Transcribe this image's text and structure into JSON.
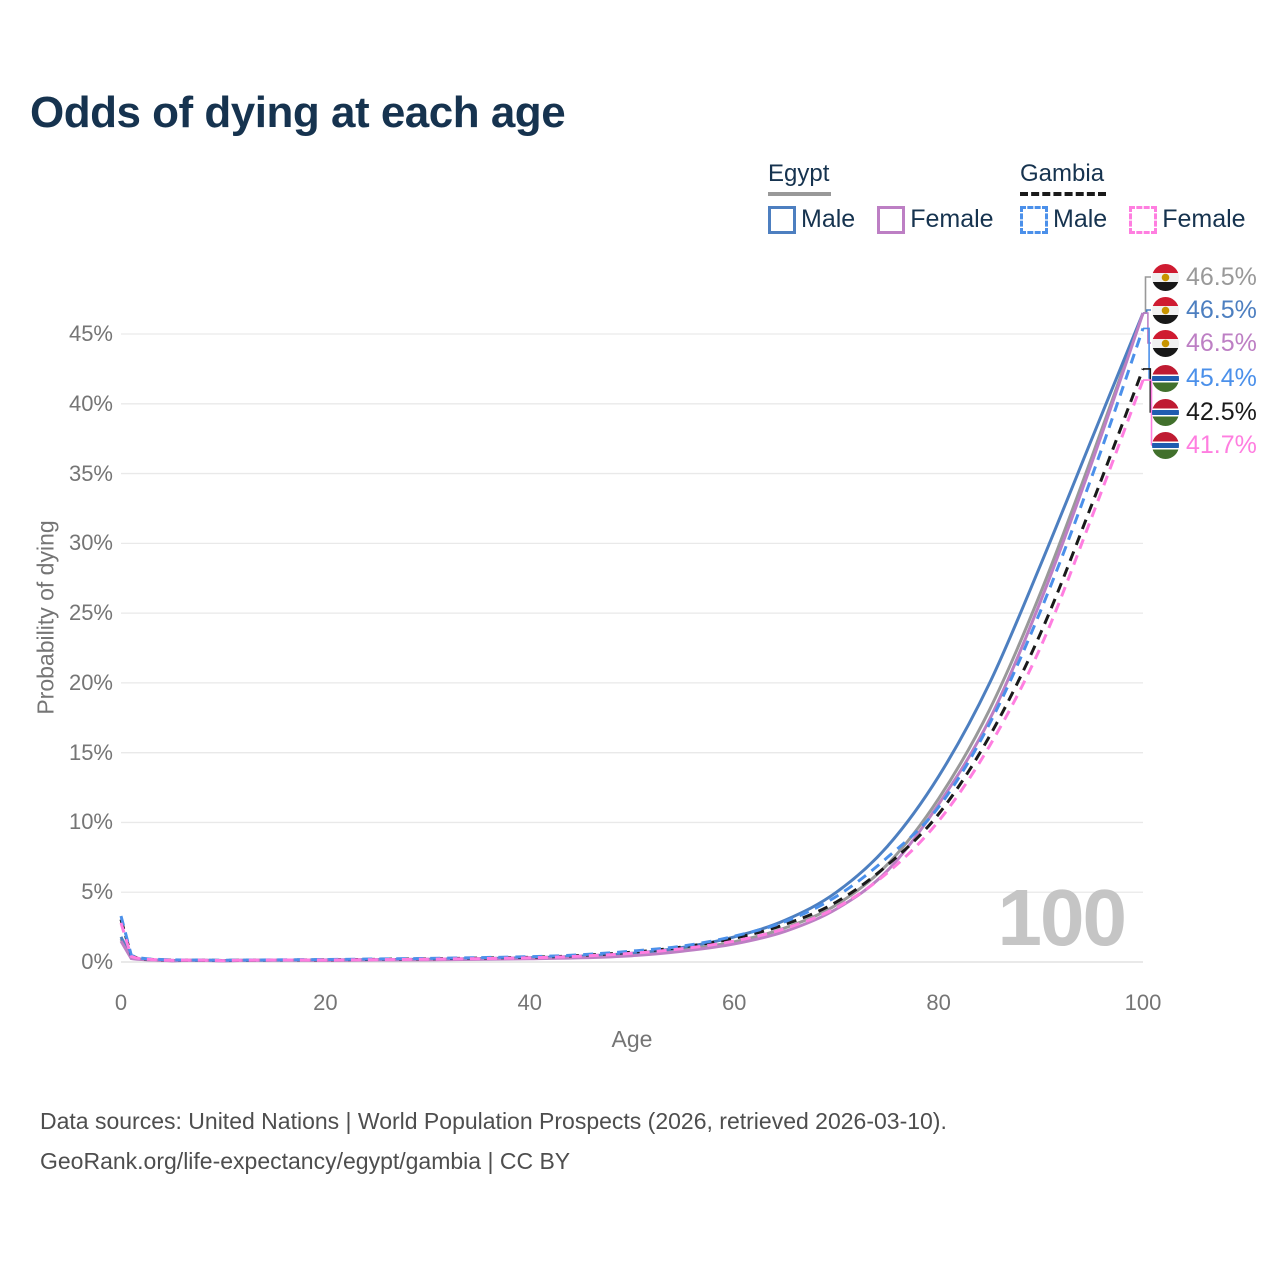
{
  "title": "Odds of dying at each age",
  "legend": {
    "groups": [
      {
        "name": "Egypt",
        "line_style": "solid",
        "underline_color": "#999999",
        "items": [
          {
            "label": "Male",
            "color": "#4d7fc0",
            "dashed": false
          },
          {
            "label": "Female",
            "color": "#bd7fc4",
            "dashed": false
          }
        ]
      },
      {
        "name": "Gambia",
        "line_style": "dashed",
        "underline_color": "#1a1a1a",
        "items": [
          {
            "label": "Male",
            "color": "#4b90ea",
            "dashed": true
          },
          {
            "label": "Female",
            "color": "#ff7ee0",
            "dashed": true
          }
        ]
      }
    ]
  },
  "watermark": "100",
  "footer": {
    "line1": "Data sources: United Nations | World Population Prospects (2026, retrieved 2026-03-10).",
    "line2": "GeoRank.org/life-expectancy/egypt/gambia | CC BY"
  },
  "chart_data": {
    "type": "line",
    "title": "Odds of dying at each age",
    "xlabel": "Age",
    "ylabel": "Probability of dying",
    "xlim": [
      0,
      100
    ],
    "ylim_percent": [
      0,
      47
    ],
    "grid": "horizontal",
    "x_ticks": [
      0,
      20,
      40,
      60,
      80,
      100
    ],
    "y_tick_percents": [
      0,
      5,
      10,
      15,
      20,
      25,
      30,
      35,
      40,
      45
    ],
    "ages": [
      0,
      1,
      5,
      10,
      20,
      30,
      40,
      45,
      50,
      55,
      60,
      65,
      70,
      75,
      80,
      85,
      90,
      95,
      100
    ],
    "unit": "percent probability of dying at each age",
    "series": [
      {
        "name": "Egypt",
        "country": "Egypt",
        "sex": "Both",
        "color": "#999999",
        "dashed": false,
        "values": [
          1.65,
          0.28,
          0.09,
          0.09,
          0.13,
          0.17,
          0.26,
          0.35,
          0.52,
          0.9,
          1.45,
          2.45,
          4.1,
          7.0,
          11.7,
          18.1,
          26.5,
          36.2,
          46.5
        ]
      },
      {
        "name": "Egypt Male",
        "country": "Egypt",
        "sex": "Male",
        "color": "#4d7fc0",
        "dashed": false,
        "values": [
          1.8,
          0.3,
          0.1,
          0.1,
          0.15,
          0.2,
          0.3,
          0.42,
          0.62,
          1.05,
          1.8,
          3.0,
          5.0,
          8.3,
          13.3,
          20.0,
          28.5,
          37.5,
          46.5
        ]
      },
      {
        "name": "Egypt Female",
        "country": "Egypt",
        "sex": "Female",
        "color": "#bd7fc4",
        "dashed": false,
        "values": [
          1.5,
          0.25,
          0.08,
          0.08,
          0.11,
          0.15,
          0.23,
          0.3,
          0.45,
          0.78,
          1.3,
          2.2,
          3.8,
          6.55,
          11.3,
          17.4,
          25.9,
          35.8,
          46.5
        ]
      },
      {
        "name": "Gambia",
        "country": "Gambia",
        "sex": "Both",
        "color": "#1a1a1a",
        "dashed": true,
        "values": [
          3.05,
          0.45,
          0.13,
          0.11,
          0.16,
          0.23,
          0.34,
          0.47,
          0.7,
          1.08,
          1.7,
          2.7,
          4.3,
          6.95,
          10.6,
          16.2,
          23.6,
          32.8,
          42.5
        ]
      },
      {
        "name": "Gambia Male",
        "country": "Gambia",
        "sex": "Male",
        "color": "#4b90ea",
        "dashed": true,
        "values": [
          3.3,
          0.5,
          0.15,
          0.12,
          0.18,
          0.26,
          0.38,
          0.52,
          0.78,
          1.15,
          1.85,
          2.9,
          4.7,
          7.5,
          11.1,
          17.1,
          25.2,
          34.8,
          45.4
        ]
      },
      {
        "name": "Gambia Female",
        "country": "Gambia",
        "sex": "Female",
        "color": "#ff7ee0",
        "dashed": true,
        "values": [
          2.8,
          0.4,
          0.12,
          0.1,
          0.14,
          0.2,
          0.3,
          0.42,
          0.62,
          0.96,
          1.5,
          2.4,
          3.9,
          6.4,
          10.1,
          15.5,
          22.6,
          31.9,
          41.7
        ]
      }
    ],
    "end_labels": [
      {
        "text": "46.5%",
        "series": "Egypt",
        "flag": "egypt",
        "color": "#999999"
      },
      {
        "text": "46.5%",
        "series": "Egypt Male",
        "flag": "egypt",
        "color": "#4d7fc0"
      },
      {
        "text": "46.5%",
        "series": "Egypt Female",
        "flag": "egypt",
        "color": "#bd7fc4"
      },
      {
        "text": "45.4%",
        "series": "Gambia Male",
        "flag": "gambia",
        "color": "#4b90ea"
      },
      {
        "text": "42.5%",
        "series": "Gambia",
        "flag": "gambia",
        "color": "#1a1a1a"
      },
      {
        "text": "41.7%",
        "series": "Gambia Female",
        "flag": "gambia",
        "color": "#ff7ee0"
      }
    ],
    "legend_position": "top-right"
  }
}
